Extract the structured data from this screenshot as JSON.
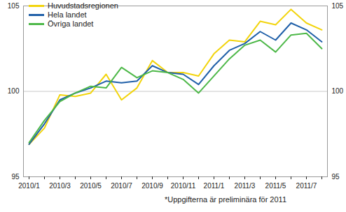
{
  "chart_data": {
    "type": "line",
    "caption": "*Uppgifterna är preliminära för 2011",
    "x": [
      "2010/1",
      null,
      "2010/3",
      null,
      "2010/5",
      null,
      "2010/7",
      null,
      "2010/9",
      null,
      "2010/11",
      null,
      "2011/1",
      null,
      "2011/3",
      null,
      "2011/5",
      null,
      "2011/7",
      null
    ],
    "series": [
      {
        "name": "Huvudstadsregionen",
        "color": "#f2d40c",
        "values": [
          96.9,
          97.85,
          99.8,
          99.7,
          99.9,
          101.0,
          99.5,
          100.2,
          101.8,
          101.1,
          101.1,
          100.9,
          102.2,
          103.0,
          102.9,
          104.1,
          103.9,
          104.8,
          104.0,
          103.6
        ]
      },
      {
        "name": "Hela landet",
        "color": "#1f5fa8",
        "values": [
          96.9,
          98.1,
          99.5,
          99.9,
          100.2,
          100.6,
          100.5,
          100.6,
          101.5,
          101.1,
          101.0,
          100.4,
          101.5,
          102.4,
          102.8,
          103.5,
          103.0,
          104.0,
          103.6,
          102.9
        ]
      },
      {
        "name": "Övriga landet",
        "color": "#4db848",
        "values": [
          97.0,
          98.3,
          99.4,
          99.9,
          100.3,
          100.2,
          101.4,
          100.8,
          101.2,
          101.1,
          100.7,
          99.9,
          100.9,
          101.9,
          102.7,
          103.0,
          102.3,
          103.3,
          103.4,
          102.5
        ]
      }
    ],
    "ylim": [
      95,
      105
    ],
    "yticks": [
      95,
      100,
      105
    ],
    "grid": true,
    "legend": "top-left"
  }
}
